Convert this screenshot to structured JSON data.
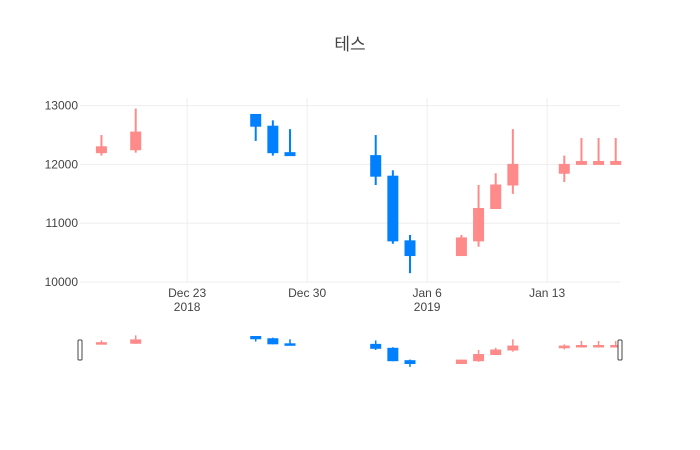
{
  "chart_data": {
    "type": "candlestick",
    "title": "테스",
    "xlabel": "",
    "ylabel": "",
    "ylim": [
      10000,
      13300
    ],
    "yticks": [
      10000,
      11000,
      12000,
      13000
    ],
    "ytick_labels": [
      "10000",
      "11000",
      "12000",
      "13000"
    ],
    "xticks": [
      {
        "date": "2018-12-23",
        "label": "Dec 23",
        "sublabel": "2018"
      },
      {
        "date": "2018-12-30",
        "label": "Dec 30",
        "sublabel": ""
      },
      {
        "date": "2019-01-06",
        "label": "Jan 6",
        "sublabel": "2019"
      },
      {
        "date": "2019-01-13",
        "label": "Jan 13",
        "sublabel": ""
      }
    ],
    "increasing_color": "#FF8A8A",
    "decreasing_color": "#0080FF",
    "rangeslider": true,
    "grid": true,
    "candles": [
      {
        "date": "2018-12-18",
        "open": 12200,
        "high": 12500,
        "low": 12150,
        "close": 12300
      },
      {
        "date": "2018-12-20",
        "open": 12250,
        "high": 12950,
        "low": 12200,
        "close": 12550
      },
      {
        "date": "2018-12-27",
        "open": 12850,
        "high": 12850,
        "low": 12400,
        "close": 12650
      },
      {
        "date": "2018-12-28",
        "open": 12650,
        "high": 12750,
        "low": 12150,
        "close": 12200
      },
      {
        "date": "2018-12-29",
        "open": 12200,
        "high": 12600,
        "low": 12150,
        "close": 12150
      },
      {
        "date": "2019-01-03",
        "open": 12150,
        "high": 12500,
        "low": 11650,
        "close": 11800
      },
      {
        "date": "2019-01-04",
        "open": 11800,
        "high": 11900,
        "low": 10650,
        "close": 10700
      },
      {
        "date": "2019-01-05",
        "open": 10700,
        "high": 10800,
        "low": 10150,
        "close": 10450
      },
      {
        "date": "2019-01-08",
        "open": 10450,
        "high": 10800,
        "low": 10450,
        "close": 10750
      },
      {
        "date": "2019-01-09",
        "open": 10700,
        "high": 11650,
        "low": 10600,
        "close": 11250
      },
      {
        "date": "2019-01-10",
        "open": 11250,
        "high": 11850,
        "low": 11250,
        "close": 11650
      },
      {
        "date": "2019-01-11",
        "open": 11650,
        "high": 12600,
        "low": 11500,
        "close": 12000
      },
      {
        "date": "2019-01-14",
        "open": 11850,
        "high": 12150,
        "low": 11700,
        "close": 12000
      },
      {
        "date": "2019-01-15",
        "open": 12000,
        "high": 12450,
        "low": 12000,
        "close": 12050
      },
      {
        "date": "2019-01-16",
        "open": 12000,
        "high": 12450,
        "low": 12000,
        "close": 12050
      },
      {
        "date": "2019-01-17",
        "open": 12000,
        "high": 12450,
        "low": 12000,
        "close": 12050
      }
    ]
  }
}
